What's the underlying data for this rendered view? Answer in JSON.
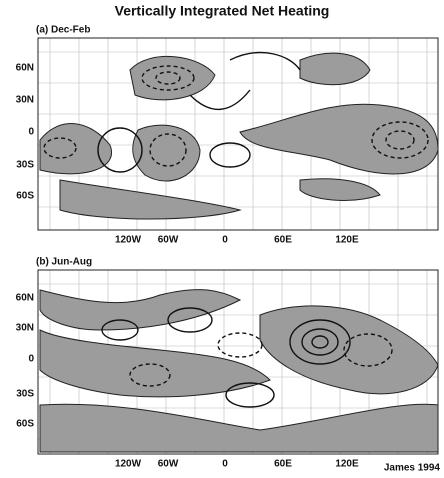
{
  "title": "Vertically Integrated Net Heating",
  "panels": [
    {
      "label": "(a) Dec-Feb",
      "lat_labels": [
        "60N",
        "30N",
        "0",
        "30S",
        "60S"
      ],
      "lon_labels": [
        "120W",
        "60W",
        "0",
        "60E",
        "120E"
      ]
    },
    {
      "label": "(b) Jun-Aug",
      "lat_labels": [
        "60N",
        "30N",
        "0",
        "30S",
        "60S"
      ],
      "lon_labels": [
        "120W",
        "60W",
        "0",
        "60E",
        "120E"
      ]
    }
  ],
  "credit": "James 1994"
}
